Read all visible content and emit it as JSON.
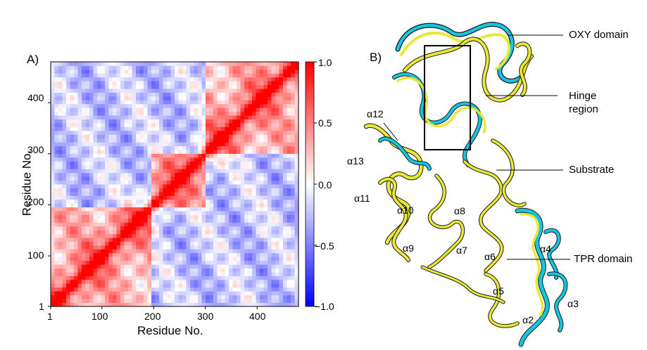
{
  "panel_a": {
    "label": "A)",
    "x_axis": {
      "title": "Residue No.",
      "ticks": [
        "1",
        "100",
        "200",
        "300",
        "400"
      ]
    },
    "y_axis": {
      "title": "Residue No.",
      "ticks": [
        "1",
        "100",
        "200",
        "300",
        "400"
      ]
    },
    "colorbar": {
      "ticks": [
        "1.0",
        "0.5",
        "0.0",
        "−0.5",
        "−1.0"
      ],
      "low_color": "#0000ff",
      "mid_color": "#ffffff",
      "high_color": "#ff0000"
    }
  },
  "panel_b": {
    "label": "B)",
    "callouts": [
      "OXY domain",
      "Hinge region",
      "Substrate",
      "TPR domain"
    ],
    "helices": [
      "α12",
      "α13",
      "α11",
      "α10",
      "α9",
      "α8",
      "α7",
      "α6",
      "α5",
      "α4",
      "α3",
      "α2"
    ],
    "colors": {
      "structure_1": "#19c4e0",
      "structure_2": "#e8e836",
      "outline": "#1a1a1a"
    }
  },
  "chart_data": {
    "type": "heatmap",
    "title": "",
    "xlabel": "Residue No.",
    "ylabel": "Residue No.",
    "xlim": [
      1,
      480
    ],
    "ylim": [
      1,
      480
    ],
    "x_ticks": [
      1,
      100,
      200,
      300,
      400
    ],
    "y_ticks": [
      1,
      100,
      200,
      300,
      400
    ],
    "color_range": [
      -1.0,
      1.0
    ],
    "colorbar_ticks": [
      1.0,
      0.5,
      0.0,
      -0.5,
      -1.0
    ],
    "colormap": "bwr",
    "description_values": "cross-correlation matrix; diagonal = 1.0"
  }
}
